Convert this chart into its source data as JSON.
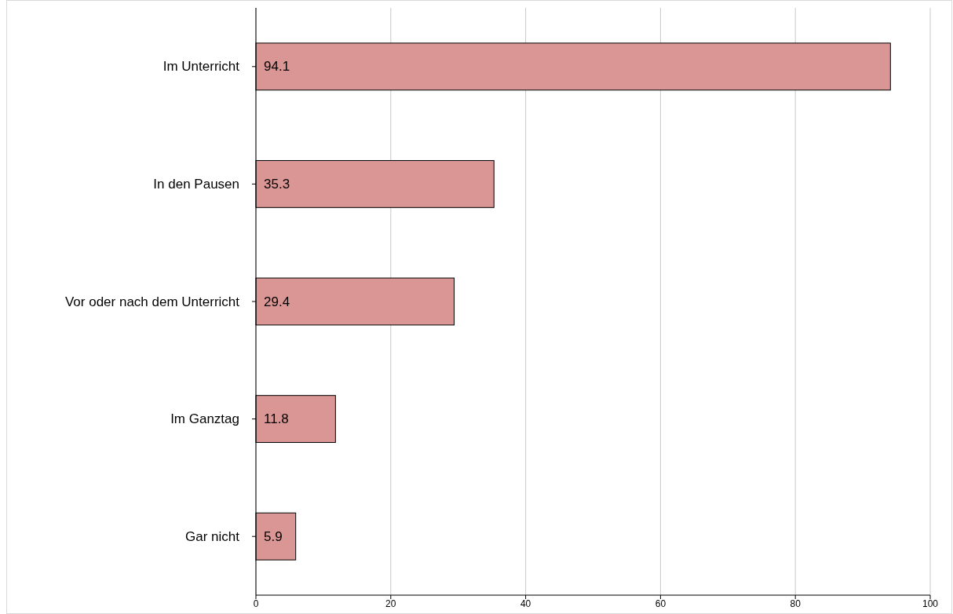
{
  "chart_data": {
    "type": "bar",
    "orientation": "horizontal",
    "categories": [
      "Im Unterricht",
      "In den Pausen",
      "Vor oder nach dem Unterricht",
      "Im Ganztag",
      "Gar nicht"
    ],
    "values": [
      94.1,
      35.3,
      29.4,
      11.8,
      5.9
    ],
    "color": "#d99694",
    "xlim": [
      0,
      100
    ],
    "xticks": [
      0,
      20,
      40,
      60,
      80,
      100
    ],
    "grid": "x",
    "data_labels": true
  }
}
